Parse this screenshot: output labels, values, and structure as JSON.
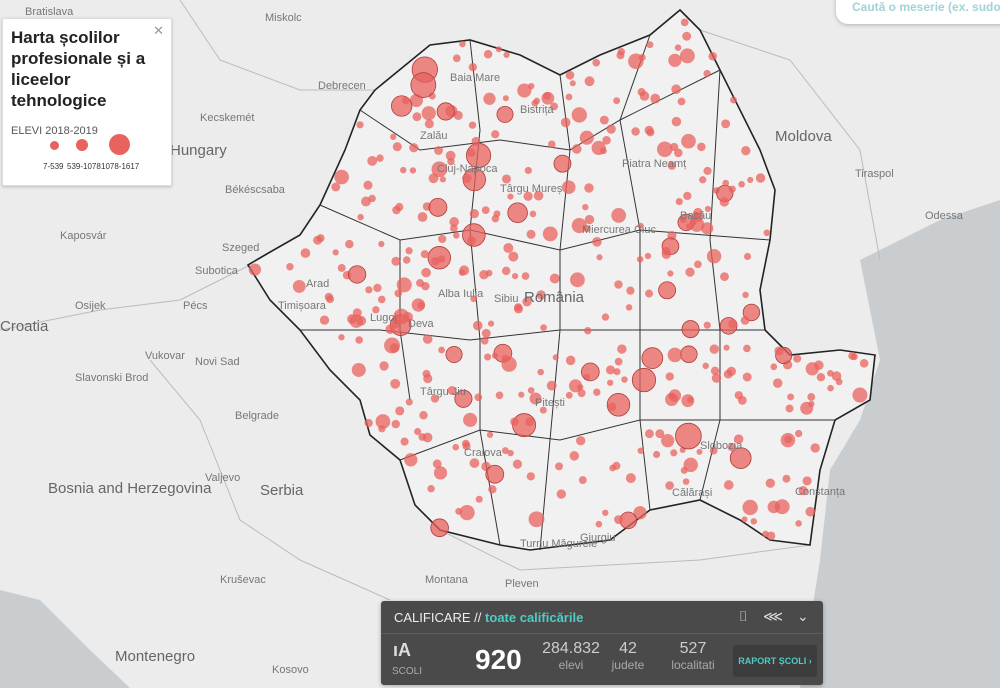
{
  "colors": {
    "bubble": "#e8625e",
    "accent": "#4ecdc4",
    "panel": "#4a4a4a",
    "border": "#333333"
  },
  "legend": {
    "title": "Harta școlilor profesionale și a liceelor tehnologice",
    "subtitle": "ELEVI 2018-2019",
    "close_icon": "close-icon",
    "classes": [
      "7-539",
      "539-1078",
      "1078-1617"
    ]
  },
  "search": {
    "placeholder": "Caută o meserie (ex. sudor)"
  },
  "map": {
    "labels": [
      "Bratislava",
      "Miskolc",
      "Debrecen",
      "Hungary",
      "Kecskemét",
      "Békéscsaba",
      "Szeged",
      "Pécs",
      "Subotica",
      "Kaposvár",
      "Osijek",
      "Novi Sad",
      "Vukovar",
      "Slavonski Brod",
      "Belgrade",
      "Serbia",
      "Bosnia and Herzegovina",
      "Montenegro",
      "Kosovo",
      "Montana",
      "Pleven",
      "Moldova",
      "Tiraspol",
      "Odessa",
      "România",
      "Cluj-Napoca",
      "Târgu Mureș",
      "Sibiu",
      "Alba Iulia",
      "Deva",
      "Timișoara",
      "Arad",
      "Piatra Neamț",
      "Bacău",
      "Pitești",
      "Craiova",
      "Giurgiu",
      "Călărași",
      "Constanța",
      "Slobozia",
      "Bistrița",
      "Zalău",
      "Baia Mare",
      "Miercurea Ciuc",
      "Târgu Jiu",
      "Turnu Măgurele",
      "Croatia",
      "Valjevo",
      "Kruševac",
      "Lugoj"
    ]
  },
  "panel": {
    "label": "CALIFICARE //",
    "filter": "toate calificările",
    "camera_icon": "camera-icon",
    "share_icon": "share-icon",
    "chevron_icon": "chevron-down-icon",
    "schools_label": "SCOLI",
    "schools": "920",
    "students": "284.832",
    "students_label": "elevi",
    "counties": "42",
    "counties_label": "judete",
    "localities": "527",
    "localities_label": "localitati",
    "report_button": "RAPORT ȘCOLI ›"
  }
}
